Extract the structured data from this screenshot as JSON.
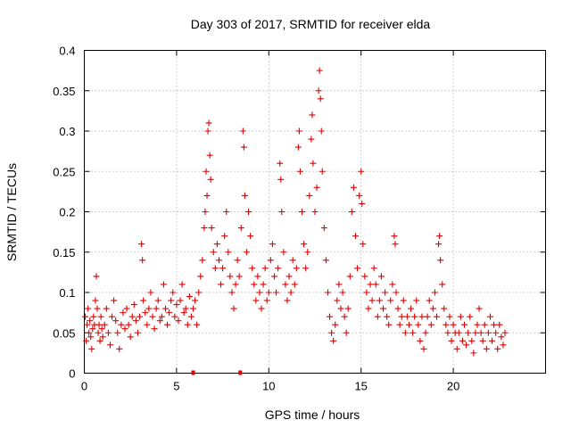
{
  "chart_data": {
    "type": "scatter",
    "title": "Day 303 of 2017, SRMTID for receiver elda",
    "xlabel": "GPS time / hours",
    "ylabel": "SRMTID / TECUs",
    "xlim": [
      0,
      25
    ],
    "ylim": [
      0,
      0.4
    ],
    "x_ticks": [
      0,
      5,
      10,
      15,
      20
    ],
    "x_tick_labels": [
      "0",
      "5",
      "10",
      "15",
      "20"
    ],
    "y_ticks": [
      0,
      0.05,
      0.1,
      0.15,
      0.2,
      0.25,
      0.3,
      0.35,
      0.4
    ],
    "y_tick_labels": [
      "0",
      "0.05",
      "0.1",
      "0.15",
      "0.2",
      "0.25",
      "0.3",
      "0.35",
      "0.4"
    ],
    "grid": true,
    "marker": "plus",
    "series": [
      {
        "name": "SRMTID",
        "color": "#e00000",
        "points": [
          [
            0.05,
            0.07
          ],
          [
            0.1,
            0.04
          ],
          [
            0.15,
            0.06
          ],
          [
            0.2,
            0.08
          ],
          [
            0.25,
            0.05
          ],
          [
            0.3,
            0.065
          ],
          [
            0.35,
            0.045
          ],
          [
            0.4,
            0.03
          ],
          [
            0.45,
            0.055
          ],
          [
            0.5,
            0.07
          ],
          [
            0.55,
            0.06
          ],
          [
            0.6,
            0.09
          ],
          [
            0.65,
            0.12
          ],
          [
            0.7,
            0.08
          ],
          [
            0.75,
            0.05
          ],
          [
            0.8,
            0.06
          ],
          [
            0.85,
            0.04
          ],
          [
            0.9,
            0.07
          ],
          [
            0.95,
            0.055
          ],
          [
            1.0,
            0.045
          ],
          [
            1.1,
            0.06
          ],
          [
            1.2,
            0.08
          ],
          [
            1.3,
            0.05
          ],
          [
            1.4,
            0.035
          ],
          [
            1.5,
            0.07
          ],
          [
            1.6,
            0.09
          ],
          [
            1.7,
            0.065
          ],
          [
            1.8,
            0.05
          ],
          [
            1.9,
            0.03
          ],
          [
            2.0,
            0.06
          ],
          [
            2.1,
            0.075
          ],
          [
            2.2,
            0.055
          ],
          [
            2.3,
            0.08
          ],
          [
            2.4,
            0.06
          ],
          [
            2.5,
            0.045
          ],
          [
            2.6,
            0.07
          ],
          [
            2.7,
            0.085
          ],
          [
            2.8,
            0.065
          ],
          [
            2.9,
            0.05
          ],
          [
            3.0,
            0.07
          ],
          [
            3.1,
            0.16
          ],
          [
            3.15,
            0.14
          ],
          [
            3.2,
            0.09
          ],
          [
            3.3,
            0.075
          ],
          [
            3.4,
            0.06
          ],
          [
            3.5,
            0.08
          ],
          [
            3.6,
            0.1
          ],
          [
            3.7,
            0.07
          ],
          [
            3.8,
            0.055
          ],
          [
            3.9,
            0.08
          ],
          [
            4.0,
            0.09
          ],
          [
            4.1,
            0.065
          ],
          [
            4.2,
            0.07
          ],
          [
            4.3,
            0.11
          ],
          [
            4.4,
            0.08
          ],
          [
            4.5,
            0.06
          ],
          [
            4.6,
            0.075
          ],
          [
            4.7,
            0.09
          ],
          [
            4.8,
            0.1
          ],
          [
            4.9,
            0.07
          ],
          [
            5.0,
            0.085
          ],
          [
            5.1,
            0.065
          ],
          [
            5.2,
            0.09
          ],
          [
            5.3,
            0.11
          ],
          [
            5.4,
            0.075
          ],
          [
            5.5,
            0.08
          ],
          [
            5.6,
            0.06
          ],
          [
            5.7,
            0.095
          ],
          [
            5.8,
            0.07
          ],
          [
            5.9,
            0.08
          ],
          [
            6.0,
            0.09
          ],
          [
            6.1,
            0.06
          ],
          [
            6.2,
            0.1
          ],
          [
            6.3,
            0.12
          ],
          [
            6.4,
            0.14
          ],
          [
            6.5,
            0.18
          ],
          [
            6.55,
            0.2
          ],
          [
            6.6,
            0.25
          ],
          [
            6.65,
            0.22
          ],
          [
            6.7,
            0.3
          ],
          [
            6.75,
            0.31
          ],
          [
            6.8,
            0.27
          ],
          [
            6.85,
            0.24
          ],
          [
            6.9,
            0.18
          ],
          [
            7.0,
            0.15
          ],
          [
            7.1,
            0.13
          ],
          [
            7.2,
            0.16
          ],
          [
            7.3,
            0.14
          ],
          [
            7.4,
            0.11
          ],
          [
            7.5,
            0.13
          ],
          [
            7.6,
            0.17
          ],
          [
            7.7,
            0.2
          ],
          [
            7.8,
            0.15
          ],
          [
            7.9,
            0.12
          ],
          [
            8.0,
            0.1
          ],
          [
            8.1,
            0.08
          ],
          [
            8.2,
            0.11
          ],
          [
            8.3,
            0.14
          ],
          [
            8.4,
            0.12
          ],
          [
            8.5,
            0.18
          ],
          [
            8.6,
            0.3
          ],
          [
            8.65,
            0.28
          ],
          [
            8.7,
            0.22
          ],
          [
            8.8,
            0.15
          ],
          [
            8.9,
            0.2
          ],
          [
            9.0,
            0.17
          ],
          [
            9.1,
            0.13
          ],
          [
            9.2,
            0.11
          ],
          [
            9.3,
            0.09
          ],
          [
            9.4,
            0.12
          ],
          [
            9.5,
            0.1
          ],
          [
            9.6,
            0.08
          ],
          [
            9.7,
            0.11
          ],
          [
            9.8,
            0.13
          ],
          [
            9.9,
            0.09
          ],
          [
            10.0,
            0.1
          ],
          [
            10.1,
            0.14
          ],
          [
            10.2,
            0.16
          ],
          [
            10.3,
            0.12
          ],
          [
            10.4,
            0.1
          ],
          [
            10.5,
            0.13
          ],
          [
            10.6,
            0.26
          ],
          [
            10.65,
            0.24
          ],
          [
            10.7,
            0.2
          ],
          [
            10.8,
            0.15
          ],
          [
            10.9,
            0.11
          ],
          [
            11.0,
            0.09
          ],
          [
            11.1,
            0.12
          ],
          [
            11.2,
            0.1
          ],
          [
            11.3,
            0.14
          ],
          [
            11.4,
            0.11
          ],
          [
            11.5,
            0.13
          ],
          [
            11.6,
            0.28
          ],
          [
            11.65,
            0.3
          ],
          [
            11.7,
            0.25
          ],
          [
            11.8,
            0.2
          ],
          [
            11.9,
            0.16
          ],
          [
            12.0,
            0.13
          ],
          [
            12.1,
            0.15
          ],
          [
            12.2,
            0.22
          ],
          [
            12.3,
            0.29
          ],
          [
            12.35,
            0.32
          ],
          [
            12.4,
            0.26
          ],
          [
            12.5,
            0.2
          ],
          [
            12.6,
            0.23
          ],
          [
            12.7,
            0.35
          ],
          [
            12.75,
            0.375
          ],
          [
            12.8,
            0.34
          ],
          [
            12.85,
            0.3
          ],
          [
            12.9,
            0.25
          ],
          [
            13.0,
            0.18
          ],
          [
            13.1,
            0.14
          ],
          [
            13.2,
            0.1
          ],
          [
            13.3,
            0.07
          ],
          [
            13.4,
            0.05
          ],
          [
            13.5,
            0.04
          ],
          [
            13.6,
            0.06
          ],
          [
            13.7,
            0.09
          ],
          [
            13.8,
            0.11
          ],
          [
            13.9,
            0.08
          ],
          [
            14.0,
            0.1
          ],
          [
            14.1,
            0.07
          ],
          [
            14.2,
            0.05
          ],
          [
            14.3,
            0.08
          ],
          [
            14.4,
            0.12
          ],
          [
            14.5,
            0.2
          ],
          [
            14.6,
            0.23
          ],
          [
            14.7,
            0.17
          ],
          [
            14.8,
            0.13
          ],
          [
            14.9,
            0.22
          ],
          [
            15.0,
            0.25
          ],
          [
            15.05,
            0.21
          ],
          [
            15.1,
            0.16
          ],
          [
            15.2,
            0.12
          ],
          [
            15.3,
            0.1
          ],
          [
            15.4,
            0.08
          ],
          [
            15.5,
            0.11
          ],
          [
            15.6,
            0.09
          ],
          [
            15.7,
            0.13
          ],
          [
            15.8,
            0.11
          ],
          [
            15.9,
            0.07
          ],
          [
            16.0,
            0.09
          ],
          [
            16.1,
            0.12
          ],
          [
            16.2,
            0.08
          ],
          [
            16.3,
            0.1
          ],
          [
            16.4,
            0.07
          ],
          [
            16.5,
            0.06
          ],
          [
            16.6,
            0.09
          ],
          [
            16.7,
            0.11
          ],
          [
            16.8,
            0.17
          ],
          [
            16.85,
            0.16
          ],
          [
            16.9,
            0.1
          ],
          [
            17.0,
            0.08
          ],
          [
            17.1,
            0.06
          ],
          [
            17.2,
            0.07
          ],
          [
            17.3,
            0.09
          ],
          [
            17.4,
            0.05
          ],
          [
            17.5,
            0.07
          ],
          [
            17.6,
            0.06
          ],
          [
            17.7,
            0.08
          ],
          [
            17.8,
            0.05
          ],
          [
            17.9,
            0.07
          ],
          [
            18.0,
            0.09
          ],
          [
            18.1,
            0.06
          ],
          [
            18.2,
            0.04
          ],
          [
            18.3,
            0.07
          ],
          [
            18.4,
            0.03
          ],
          [
            18.5,
            0.05
          ],
          [
            18.6,
            0.07
          ],
          [
            18.7,
            0.09
          ],
          [
            18.8,
            0.06
          ],
          [
            18.9,
            0.08
          ],
          [
            19.0,
            0.1
          ],
          [
            19.1,
            0.07
          ],
          [
            19.2,
            0.16
          ],
          [
            19.25,
            0.17
          ],
          [
            19.3,
            0.14
          ],
          [
            19.4,
            0.11
          ],
          [
            19.5,
            0.08
          ],
          [
            19.6,
            0.06
          ],
          [
            19.7,
            0.05
          ],
          [
            19.8,
            0.07
          ],
          [
            19.9,
            0.04
          ],
          [
            20.0,
            0.06
          ],
          [
            20.1,
            0.05
          ],
          [
            20.2,
            0.03
          ],
          [
            20.3,
            0.05
          ],
          [
            20.4,
            0.07
          ],
          [
            20.5,
            0.04
          ],
          [
            20.6,
            0.06
          ],
          [
            20.7,
            0.035
          ],
          [
            20.8,
            0.05
          ],
          [
            20.9,
            0.07
          ],
          [
            21.0,
            0.04
          ],
          [
            21.1,
            0.025
          ],
          [
            21.2,
            0.05
          ],
          [
            21.3,
            0.06
          ],
          [
            21.4,
            0.08
          ],
          [
            21.5,
            0.05
          ],
          [
            21.6,
            0.04
          ],
          [
            21.7,
            0.06
          ],
          [
            21.8,
            0.03
          ],
          [
            21.9,
            0.05
          ],
          [
            22.0,
            0.07
          ],
          [
            22.1,
            0.04
          ],
          [
            22.2,
            0.06
          ],
          [
            22.3,
            0.05
          ],
          [
            22.4,
            0.03
          ],
          [
            22.5,
            0.06
          ],
          [
            22.6,
            0.045
          ],
          [
            22.7,
            0.035
          ],
          [
            22.8,
            0.05
          ]
        ]
      }
    ],
    "flag_points": [
      [
        5.9,
        0.0
      ],
      [
        8.45,
        0.0
      ]
    ]
  }
}
